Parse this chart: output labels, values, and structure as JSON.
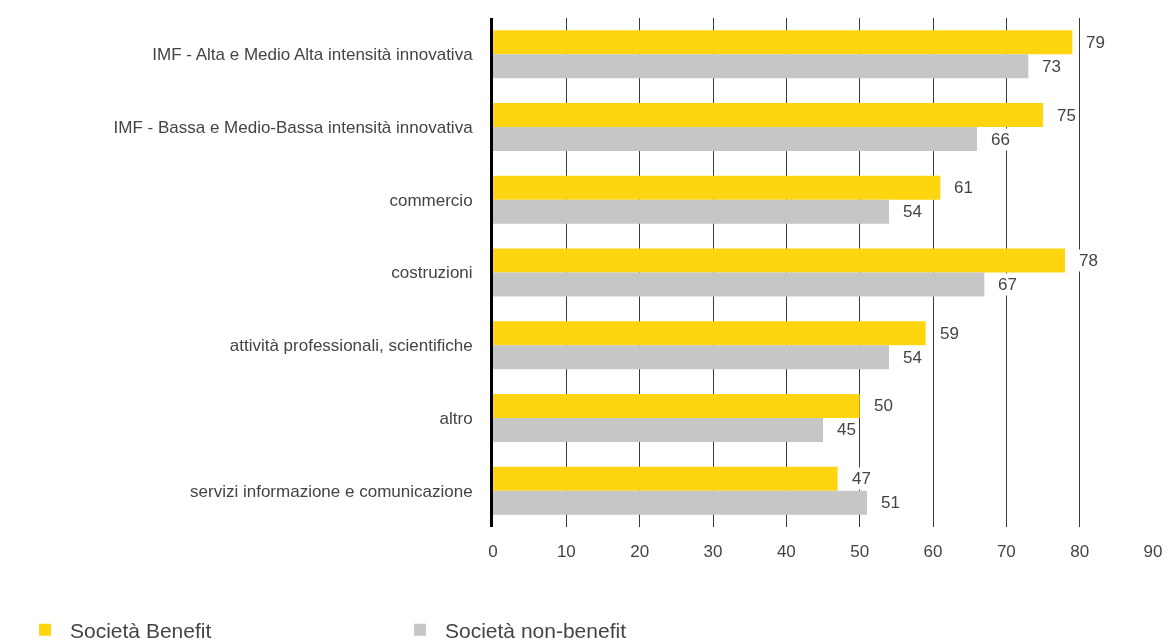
{
  "chart_data": {
    "type": "bar",
    "orientation": "horizontal",
    "categories": [
      "IMF - Alta e Medio Alta intensità innovativa",
      "IMF - Bassa e Medio-Bassa intensità innovativa",
      "commercio",
      "costruzioni",
      "attività professionali, scientifiche",
      "altro",
      "servizi informazione e comunicazione"
    ],
    "series": [
      {
        "name": "Società Benefit",
        "color": "#ffd510",
        "values": [
          79,
          75,
          61,
          78,
          59,
          50,
          47
        ]
      },
      {
        "name": "Società non-benefit",
        "color": "#c6c6c6",
        "values": [
          73,
          66,
          54,
          67,
          54,
          45,
          51
        ]
      }
    ],
    "xlim": [
      0,
      90
    ],
    "xticks": [
      0,
      10,
      20,
      30,
      40,
      50,
      60,
      70,
      80,
      90
    ],
    "grid": "x",
    "legend": "bottom left",
    "data_labels": true
  }
}
